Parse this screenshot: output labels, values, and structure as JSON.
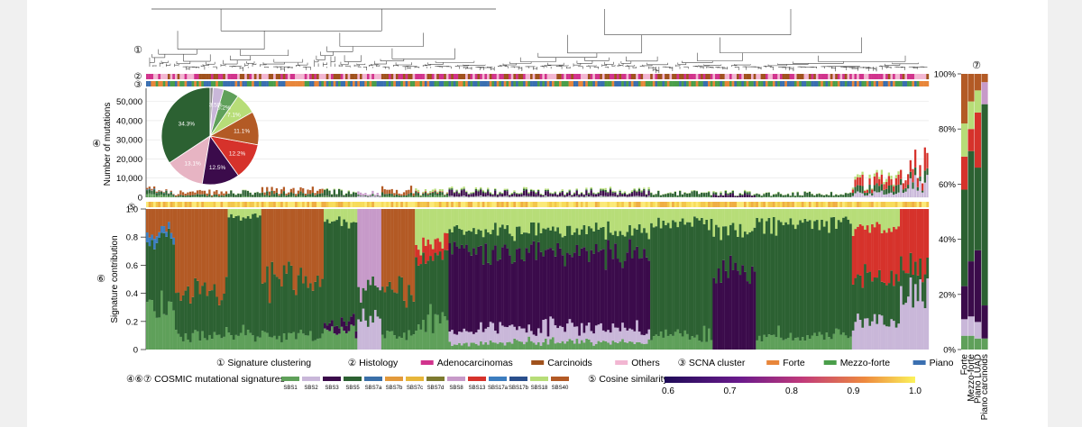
{
  "panels": {
    "p1": "①",
    "p2": "②",
    "p3": "③",
    "p4": "④",
    "p5": "⑤",
    "p6": "⑥",
    "p7": "⑦"
  },
  "axes": {
    "mutations_ylabel": "Number of mutations",
    "mutations_ticks": [
      "0",
      "10,000",
      "20,000",
      "30,000",
      "40,000",
      "50,000"
    ],
    "contribution_ylabel": "Signature contribution",
    "contribution_ticks": [
      "0",
      "0.2",
      "0.4",
      "0.6",
      "0.8",
      "1.0"
    ],
    "right_ticks": [
      "0%",
      "20%",
      "40%",
      "60%",
      "80%",
      "100%"
    ]
  },
  "legend": {
    "row1": [
      {
        "text": "① Signature clustering"
      },
      {
        "text": "② Histology"
      },
      {
        "text": "Adenocarcinomas",
        "color": "#d1338d"
      },
      {
        "text": "Carcinoids",
        "color": "#a0521d"
      },
      {
        "text": "Others",
        "color": "#f2b6d2"
      },
      {
        "text": "③ SCNA cluster"
      },
      {
        "text": "Forte",
        "color": "#e8863a"
      },
      {
        "text": "Mezzo-forte",
        "color": "#4a9e4a"
      },
      {
        "text": "Piano",
        "color": "#3a6fb0"
      }
    ],
    "cosmic_label": "④⑥⑦ COSMIC mutational signatures",
    "cosine_label": "⑤ Cosine similarity",
    "cosine_ticks": [
      "0.6",
      "0.7",
      "0.8",
      "0.9",
      "1.0"
    ]
  },
  "signatures": [
    {
      "name": "SBS1",
      "color": "#5fa05a"
    },
    {
      "name": "SBS2",
      "color": "#c9b7d9"
    },
    {
      "name": "SBS3",
      "color": "#3b0b4b"
    },
    {
      "name": "SBS5",
      "color": "#2c6132"
    },
    {
      "name": "SBS7a",
      "color": "#3a6fa8"
    },
    {
      "name": "SBS7b",
      "color": "#e39a3b"
    },
    {
      "name": "SBS7c",
      "color": "#e7b63a"
    },
    {
      "name": "SBS7d",
      "color": "#7d7a2f"
    },
    {
      "name": "SBS8",
      "color": "#c79ac9"
    },
    {
      "name": "SBS13",
      "color": "#d6322b"
    },
    {
      "name": "SBS17a",
      "color": "#3c7dbf"
    },
    {
      "name": "SBS17b",
      "color": "#2a4f8c"
    },
    {
      "name": "SBS18",
      "color": "#b7dd78"
    },
    {
      "name": "SBS40",
      "color": "#b35a25"
    }
  ],
  "pie_labels": [
    "34.3%",
    "13.1%",
    "12.5%",
    "12.2%",
    "11.1%",
    "7.1%",
    "5.2%",
    "3.5%"
  ],
  "summary": {
    "categories": [
      "Forte",
      "Mezzo-forte",
      "Piano LUAD",
      "Piano carcinoids"
    ]
  },
  "chart_data": {
    "type": "bar",
    "ylim_mutations": [
      0,
      55000
    ],
    "ylim_contribution": [
      0,
      1.0
    ],
    "pie": {
      "type": "pie",
      "slices": [
        {
          "value": 34.3,
          "color": "#2c6132"
        },
        {
          "value": 13.1,
          "color": "#e7b4c3"
        },
        {
          "value": 12.5,
          "color": "#3b0b4b"
        },
        {
          "value": 12.2,
          "color": "#d6322b"
        },
        {
          "value": 11.1,
          "color": "#b35a25"
        },
        {
          "value": 7.1,
          "color": "#b7dd78"
        },
        {
          "value": 5.2,
          "color": "#5fa05a"
        },
        {
          "value": 3.5,
          "color": "#c9b7d9"
        },
        {
          "value": 1.0,
          "color": "#888888"
        }
      ]
    },
    "sample_regions": [
      {
        "n": 12,
        "mut": 4000,
        "profile": {
          "SBS1": 0.3,
          "SBS5": 0.5,
          "SBS40": 0.15,
          "SBS17a": 0.05
        }
      },
      {
        "n": 22,
        "mut": 2500,
        "profile": {
          "SBS40": 0.6,
          "SBS5": 0.3,
          "SBS1": 0.1
        }
      },
      {
        "n": 14,
        "mut": 2500,
        "profile": {
          "SBS5": 0.85,
          "SBS1": 0.1,
          "SBS18": 0.05
        }
      },
      {
        "n": 26,
        "mut": 3500,
        "profile": {
          "SBS40": 0.5,
          "SBS5": 0.4,
          "SBS1": 0.1
        }
      },
      {
        "n": 14,
        "mut": 3000,
        "profile": {
          "SBS5": 0.7,
          "SBS1": 0.15,
          "SBS3": 0.05,
          "SBS18": 0.1
        }
      },
      {
        "n": 10,
        "mut": 2500,
        "profile": {
          "SBS8": 0.6,
          "SBS2": 0.2,
          "SBS5": 0.2
        }
      },
      {
        "n": 14,
        "mut": 4000,
        "profile": {
          "SBS40": 0.6,
          "SBS5": 0.3,
          "SBS1": 0.1
        }
      },
      {
        "n": 14,
        "mut": 3000,
        "profile": {
          "SBS5": 0.45,
          "SBS13": 0.1,
          "SBS18": 0.25,
          "SBS1": 0.2
        }
      },
      {
        "n": 84,
        "mut": 3500,
        "profile": {
          "SBS3": 0.55,
          "SBS18": 0.15,
          "SBS5": 0.15,
          "SBS1": 0.05,
          "SBS2": 0.1
        }
      },
      {
        "n": 26,
        "mut": 2500,
        "profile": {
          "SBS5": 0.8,
          "SBS18": 0.1,
          "SBS1": 0.1
        }
      },
      {
        "n": 18,
        "mut": 2500,
        "profile": {
          "SBS3": 0.55,
          "SBS5": 0.3,
          "SBS18": 0.15
        }
      },
      {
        "n": 40,
        "mut": 2000,
        "profile": {
          "SBS5": 0.8,
          "SBS18": 0.1,
          "SBS1": 0.1
        }
      },
      {
        "n": 20,
        "mut": 9000,
        "profile": {
          "SBS13": 0.35,
          "SBS5": 0.3,
          "SBS18": 0.15,
          "SBS2": 0.2
        }
      },
      {
        "n": 12,
        "mut": 18000,
        "profile": {
          "SBS13": 0.4,
          "SBS2": 0.4,
          "SBS5": 0.2
        }
      }
    ]
  }
}
